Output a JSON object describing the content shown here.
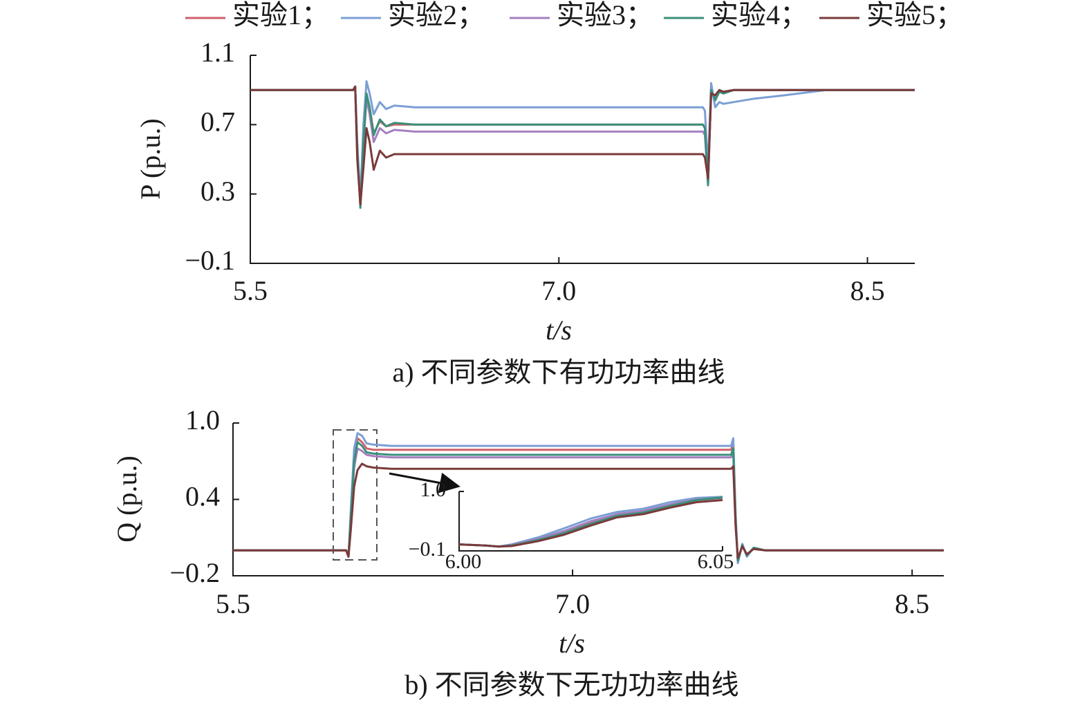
{
  "chart_data": [
    {
      "type": "line",
      "legend": "top",
      "y_label": "P (p.u.)",
      "x_label": "t/s",
      "caption": "a) 不同参数下有功功率曲线",
      "xlim": [
        5.5,
        8.73
      ],
      "xticks": [
        5.5,
        {
          "value": 7,
          "label": "7.0"
        },
        8.5
      ],
      "ylim": [
        -0.1,
        1.1
      ],
      "yticks": [
        {
          "value": -0.1,
          "label": "−0.1"
        },
        0.3,
        0.7,
        1.1
      ],
      "x": [
        5.5,
        6.0,
        6.01,
        6.02,
        6.035,
        6.05,
        6.065,
        6.08,
        6.1,
        6.13,
        6.16,
        6.2,
        6.3,
        7.7,
        7.71,
        7.725,
        7.74,
        7.76,
        7.78,
        7.8,
        7.85,
        7.95,
        8.1,
        8.3,
        8.73
      ],
      "series": [
        {
          "name": "实验1；",
          "color": "#d0606a",
          "values": [
            0.9,
            0.9,
            0.92,
            0.56,
            0.23,
            0.61,
            0.87,
            0.8,
            0.65,
            0.72,
            0.69,
            0.7,
            0.7,
            0.7,
            0.68,
            0.36,
            0.9,
            0.85,
            0.89,
            0.88,
            0.9,
            0.9,
            0.9,
            0.9,
            0.9
          ]
        },
        {
          "name": "实验2；",
          "color": "#7b9fd4",
          "values": [
            0.9,
            0.9,
            0.92,
            0.6,
            0.27,
            0.7,
            0.95,
            0.88,
            0.76,
            0.83,
            0.79,
            0.81,
            0.8,
            0.8,
            0.78,
            0.45,
            0.94,
            0.8,
            0.83,
            0.82,
            0.83,
            0.85,
            0.87,
            0.9,
            0.9
          ]
        },
        {
          "name": "实验3；",
          "color": "#a57fc0",
          "values": [
            0.9,
            0.9,
            0.92,
            0.55,
            0.24,
            0.58,
            0.85,
            0.76,
            0.6,
            0.68,
            0.65,
            0.67,
            0.66,
            0.66,
            0.64,
            0.36,
            0.88,
            0.86,
            0.89,
            0.89,
            0.9,
            0.9,
            0.9,
            0.9,
            0.9
          ]
        },
        {
          "name": "实验4；",
          "color": "#3a8f7a",
          "values": [
            0.9,
            0.9,
            0.92,
            0.55,
            0.22,
            0.6,
            0.88,
            0.8,
            0.64,
            0.73,
            0.69,
            0.71,
            0.7,
            0.7,
            0.68,
            0.35,
            0.9,
            0.84,
            0.89,
            0.88,
            0.9,
            0.9,
            0.9,
            0.9,
            0.9
          ]
        },
        {
          "name": "实验5；",
          "color": "#7a3a3a",
          "values": [
            0.9,
            0.9,
            0.92,
            0.5,
            0.24,
            0.45,
            0.68,
            0.6,
            0.44,
            0.55,
            0.51,
            0.53,
            0.53,
            0.53,
            0.51,
            0.39,
            0.88,
            0.87,
            0.9,
            0.89,
            0.9,
            0.9,
            0.9,
            0.9,
            0.9
          ]
        }
      ]
    },
    {
      "type": "line",
      "y_label": "Q (p.u.)",
      "x_label": "t/s",
      "caption": "b) 不同参数下无功功率曲线",
      "xlim": [
        5.5,
        8.64
      ],
      "xticks": [
        5.5,
        {
          "value": 7,
          "label": "7.0"
        },
        8.5
      ],
      "ylim": [
        -0.2,
        1.0
      ],
      "yticks": [
        {
          "value": -0.2,
          "label": "−0.2"
        },
        0.4,
        {
          "value": 1.0,
          "label": "1.0"
        }
      ],
      "x": [
        5.5,
        6.0,
        6.01,
        6.02,
        6.035,
        6.05,
        6.07,
        6.09,
        6.12,
        6.2,
        7.7,
        7.71,
        7.72,
        7.73,
        7.75,
        7.77,
        7.8,
        7.85,
        8.64
      ],
      "series": [
        {
          "color": "#d0606a",
          "values": [
            0,
            0,
            -0.05,
            0.28,
            0.75,
            0.88,
            0.85,
            0.8,
            0.79,
            0.79,
            0.79,
            0.84,
            0.28,
            -0.1,
            0.05,
            -0.05,
            0.02,
            0,
            0
          ]
        },
        {
          "color": "#7b9fd4",
          "values": [
            0,
            0,
            -0.05,
            0.3,
            0.8,
            0.92,
            0.9,
            0.84,
            0.83,
            0.82,
            0.82,
            0.88,
            0.3,
            -0.1,
            0.05,
            -0.05,
            0.02,
            0,
            0
          ]
        },
        {
          "color": "#a57fc0",
          "values": [
            0,
            0,
            -0.05,
            0.22,
            0.65,
            0.8,
            0.78,
            0.75,
            0.74,
            0.73,
            0.73,
            0.76,
            0.2,
            -0.08,
            0.04,
            -0.04,
            0.02,
            0,
            0
          ]
        },
        {
          "color": "#3a8f7a",
          "values": [
            0,
            0,
            -0.05,
            0.25,
            0.7,
            0.85,
            0.82,
            0.77,
            0.76,
            0.75,
            0.75,
            0.8,
            0.25,
            -0.08,
            0.04,
            -0.04,
            0.02,
            0,
            0
          ]
        },
        {
          "color": "#7a3a3a",
          "values": [
            0,
            0,
            -0.05,
            0.15,
            0.5,
            0.63,
            0.68,
            0.66,
            0.65,
            0.64,
            0.64,
            0.66,
            0.2,
            -0.06,
            0.03,
            -0.03,
            0.01,
            0,
            0
          ]
        }
      ]
    },
    {
      "type": "line",
      "xlim": [
        6.0,
        6.05
      ],
      "xticks": [
        {
          "value": 6.0,
          "label": "6.00"
        },
        {
          "value": 6.05,
          "label": "6.05"
        }
      ],
      "ylim": [
        -0.1,
        1.0
      ],
      "yticks": [
        {
          "value": -0.1,
          "label": "−0.1"
        },
        {
          "value": 1.0,
          "label": "1.0"
        }
      ],
      "x": [
        6.0,
        6.005,
        6.0075,
        6.01,
        6.015,
        6.02,
        6.025,
        6.03,
        6.035,
        6.04,
        6.045,
        6.05
      ],
      "series": [
        {
          "color": "#d0606a",
          "values": [
            0.02,
            0.0,
            -0.02,
            0.0,
            0.1,
            0.24,
            0.41,
            0.55,
            0.62,
            0.74,
            0.84,
            0.88
          ]
        },
        {
          "color": "#7b9fd4",
          "values": [
            0.02,
            0.0,
            -0.02,
            0.02,
            0.15,
            0.32,
            0.5,
            0.62,
            0.68,
            0.8,
            0.88,
            0.9
          ]
        },
        {
          "color": "#a57fc0",
          "values": [
            0.02,
            0.0,
            -0.02,
            0.01,
            0.12,
            0.27,
            0.45,
            0.58,
            0.64,
            0.76,
            0.85,
            0.88
          ]
        },
        {
          "color": "#3a8f7a",
          "values": [
            0.02,
            0.0,
            -0.02,
            0.0,
            0.1,
            0.23,
            0.4,
            0.55,
            0.61,
            0.73,
            0.84,
            0.89
          ]
        },
        {
          "color": "#7a3a3a",
          "values": [
            0.02,
            0.0,
            -0.02,
            -0.01,
            0.08,
            0.2,
            0.37,
            0.52,
            0.58,
            0.7,
            0.8,
            0.84
          ]
        }
      ]
    }
  ]
}
